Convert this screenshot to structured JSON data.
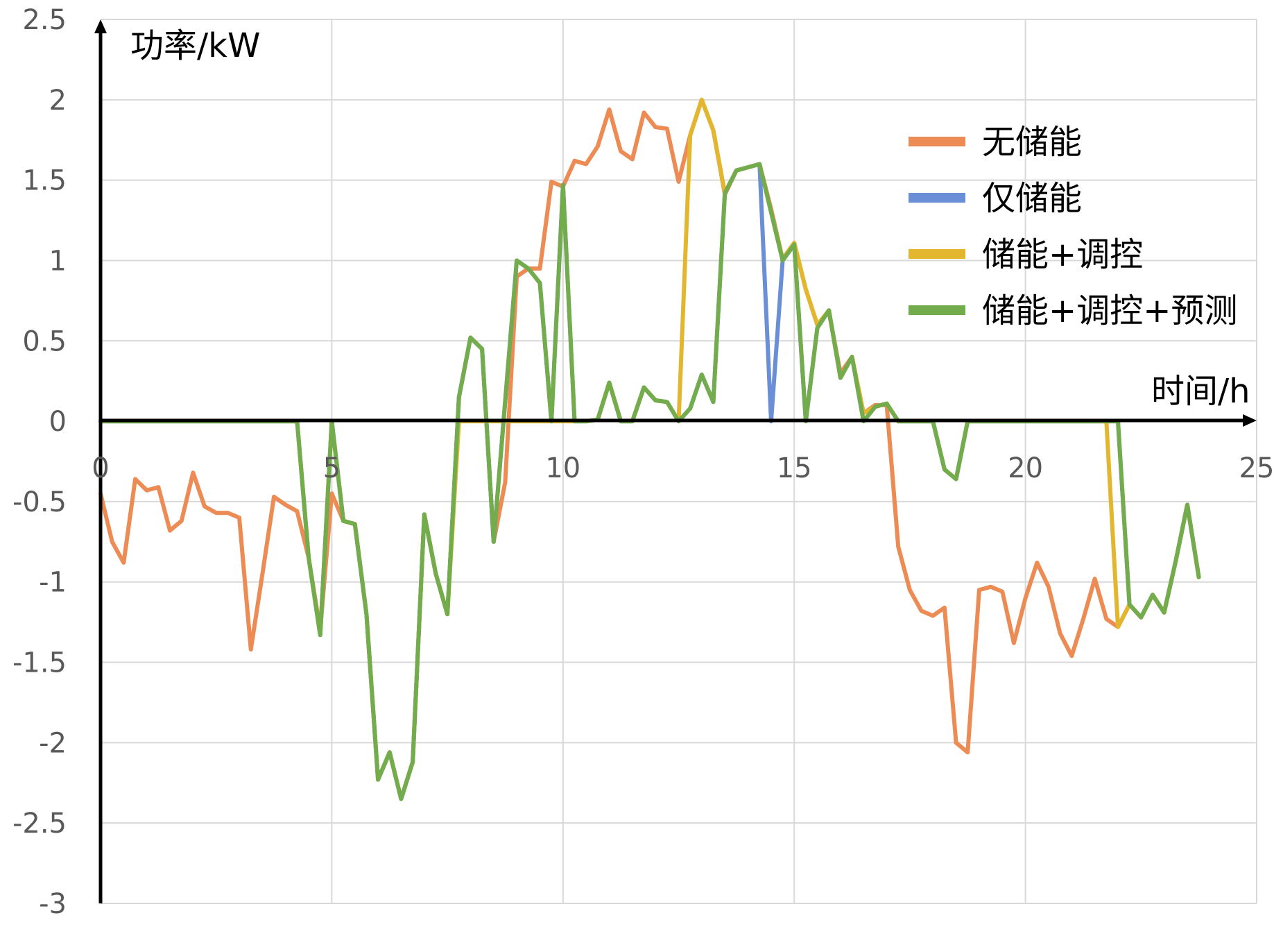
{
  "chart_data": {
    "type": "line",
    "xlabel": "时间/h",
    "ylabel": "功率/kW",
    "xlim": [
      0,
      25
    ],
    "ylim": [
      -3,
      2.5
    ],
    "xticks": [
      0,
      5,
      10,
      15,
      20,
      25
    ],
    "yticks": [
      2.5,
      2,
      1.5,
      1,
      0.5,
      0,
      -0.5,
      -1,
      -1.5,
      -2,
      -2.5,
      -3
    ],
    "ytick_labels": [
      "2.5",
      "2",
      "1.5",
      "1",
      "0.5",
      "0",
      "-0.5",
      "-1",
      "-1.5",
      "-2",
      "-2.5",
      "-3"
    ],
    "xtick_labels": [
      "0",
      "5",
      "10",
      "15",
      "20",
      "25"
    ],
    "grid": true,
    "legend_position": "top-right",
    "series": [
      {
        "name": "无储能",
        "color": "#ed8b55",
        "points": [
          [
            0,
            -0.45
          ],
          [
            0.25,
            -0.75
          ],
          [
            0.5,
            -0.88
          ],
          [
            0.75,
            -0.36
          ],
          [
            1,
            -0.43
          ],
          [
            1.25,
            -0.41
          ],
          [
            1.5,
            -0.68
          ],
          [
            1.75,
            -0.62
          ],
          [
            2,
            -0.32
          ],
          [
            2.25,
            -0.53
          ],
          [
            2.5,
            -0.57
          ],
          [
            2.75,
            -0.57
          ],
          [
            3,
            -0.6
          ],
          [
            3.25,
            -1.42
          ],
          [
            3.5,
            -0.95
          ],
          [
            3.75,
            -0.47
          ],
          [
            4,
            -0.52
          ],
          [
            4.25,
            -0.56
          ],
          [
            4.5,
            -0.85
          ],
          [
            4.75,
            -1.3
          ],
          [
            5,
            -0.45
          ],
          [
            5.25,
            -0.62
          ],
          [
            5.5,
            -0.64
          ],
          [
            5.75,
            -1.2
          ],
          [
            6,
            -2.23
          ],
          [
            6.25,
            -2.06
          ],
          [
            6.5,
            -2.35
          ],
          [
            6.75,
            -2.12
          ],
          [
            7,
            -0.58
          ],
          [
            7.25,
            -0.95
          ],
          [
            7.5,
            -1.2
          ],
          [
            7.75,
            0.15
          ],
          [
            8,
            0.52
          ],
          [
            8.25,
            0.45
          ],
          [
            8.5,
            -0.75
          ],
          [
            8.75,
            -0.38
          ],
          [
            9,
            0.9
          ],
          [
            9.25,
            0.95
          ],
          [
            9.5,
            0.95
          ],
          [
            9.75,
            1.49
          ],
          [
            10,
            1.46
          ],
          [
            10.25,
            1.62
          ],
          [
            10.5,
            1.6
          ],
          [
            10.75,
            1.71
          ],
          [
            11,
            1.94
          ],
          [
            11.25,
            1.68
          ],
          [
            11.5,
            1.63
          ],
          [
            11.75,
            1.92
          ],
          [
            12,
            1.83
          ],
          [
            12.25,
            1.82
          ],
          [
            12.5,
            1.49
          ],
          [
            12.75,
            1.78
          ],
          [
            13,
            2
          ],
          [
            13.25,
            1.81
          ],
          [
            13.5,
            1.41
          ],
          [
            13.75,
            1.56
          ],
          [
            14,
            1.58
          ],
          [
            14.25,
            1.6
          ],
          [
            14.5,
            1.32
          ],
          [
            14.75,
            1.01
          ],
          [
            15,
            1.11
          ],
          [
            15.25,
            0.82
          ],
          [
            15.5,
            0.6
          ],
          [
            15.75,
            0.68
          ],
          [
            16,
            0.3
          ],
          [
            16.25,
            0.4
          ],
          [
            16.5,
            0.05
          ],
          [
            16.75,
            0.1
          ],
          [
            17,
            0.1
          ],
          [
            17.25,
            -0.78
          ],
          [
            17.5,
            -1.05
          ],
          [
            17.75,
            -1.18
          ],
          [
            18,
            -1.21
          ],
          [
            18.25,
            -1.16
          ],
          [
            18.5,
            -2
          ],
          [
            18.75,
            -2.06
          ],
          [
            19,
            -1.05
          ],
          [
            19.25,
            -1.03
          ],
          [
            19.5,
            -1.06
          ],
          [
            19.75,
            -1.38
          ],
          [
            20,
            -1.1
          ],
          [
            20.25,
            -0.88
          ],
          [
            20.5,
            -1.03
          ],
          [
            20.75,
            -1.32
          ],
          [
            21,
            -1.46
          ],
          [
            21.25,
            -1.23
          ],
          [
            21.5,
            -0.98
          ],
          [
            21.75,
            -1.23
          ],
          [
            22,
            -1.28
          ],
          [
            22.25,
            -1.14
          ],
          [
            22.5,
            -1.22
          ],
          [
            22.75,
            -1.08
          ],
          [
            23,
            -1.19
          ],
          [
            23.25,
            -0.87
          ],
          [
            23.5,
            -0.52
          ],
          [
            23.75,
            -0.97
          ]
        ]
      },
      {
        "name": "仅储能",
        "color": "#6a8fd6",
        "points": [
          [
            0,
            0
          ],
          [
            4.25,
            0
          ],
          [
            4.5,
            -0.85
          ],
          [
            4.75,
            -1.33
          ],
          [
            5,
            0
          ],
          [
            5.25,
            -0.62
          ],
          [
            5.5,
            -0.64
          ],
          [
            5.75,
            -1.2
          ],
          [
            6,
            -2.23
          ],
          [
            6.25,
            -2.06
          ],
          [
            6.5,
            -2.35
          ],
          [
            6.75,
            -2.12
          ],
          [
            7,
            -0.58
          ],
          [
            7.25,
            -0.95
          ],
          [
            7.5,
            -1.2
          ],
          [
            7.75,
            0.15
          ],
          [
            8,
            0.52
          ],
          [
            8.25,
            0.45
          ],
          [
            8.5,
            -0.75
          ],
          [
            9,
            1
          ],
          [
            9.25,
            0.95
          ],
          [
            9.5,
            0.86
          ],
          [
            9.75,
            0
          ],
          [
            10,
            1.47
          ],
          [
            10.25,
            0
          ],
          [
            10.5,
            0
          ],
          [
            10.75,
            0.01
          ],
          [
            11,
            0.24
          ],
          [
            11.25,
            0
          ],
          [
            11.5,
            0
          ],
          [
            11.75,
            0.21
          ],
          [
            12,
            0.13
          ],
          [
            12.25,
            0.12
          ],
          [
            12.5,
            0
          ],
          [
            12.75,
            0.08
          ],
          [
            13,
            0.29
          ],
          [
            13.25,
            0.12
          ],
          [
            13.5,
            1.42
          ],
          [
            13.75,
            1.56
          ],
          [
            14,
            1.58
          ],
          [
            14.25,
            1.6
          ],
          [
            14.5,
            0
          ],
          [
            14.75,
            1
          ],
          [
            15,
            1.1
          ],
          [
            15.25,
            0
          ],
          [
            15.5,
            0.58
          ],
          [
            15.75,
            0.69
          ],
          [
            16,
            0.27
          ],
          [
            16.25,
            0.4
          ],
          [
            16.5,
            0
          ],
          [
            16.75,
            0.09
          ],
          [
            17,
            0.11
          ],
          [
            17.25,
            0
          ],
          [
            18,
            0
          ],
          [
            18.25,
            -0.3
          ],
          [
            18.5,
            -0.36
          ],
          [
            18.75,
            0
          ],
          [
            22,
            0
          ],
          [
            22.25,
            -1.14
          ],
          [
            22.5,
            -1.22
          ],
          [
            22.75,
            -1.08
          ],
          [
            23,
            -1.19
          ],
          [
            23.25,
            -0.87
          ],
          [
            23.5,
            -0.52
          ],
          [
            23.75,
            -0.97
          ]
        ]
      },
      {
        "name": "储能+调控",
        "color": "#e2b62e",
        "points": [
          [
            0,
            0
          ],
          [
            4.25,
            0
          ],
          [
            4.5,
            -0.85
          ],
          [
            4.75,
            -1.33
          ],
          [
            5,
            0
          ],
          [
            5.25,
            -0.62
          ],
          [
            5.5,
            -0.64
          ],
          [
            5.75,
            -1.2
          ],
          [
            6,
            -2.23
          ],
          [
            6.25,
            -2.06
          ],
          [
            6.5,
            -2.35
          ],
          [
            6.75,
            -2.12
          ],
          [
            7,
            -0.58
          ],
          [
            7.25,
            -0.95
          ],
          [
            7.5,
            -1.2
          ],
          [
            7.75,
            0
          ],
          [
            9.75,
            0
          ],
          [
            10,
            0
          ],
          [
            10.25,
            0
          ],
          [
            10.5,
            0
          ],
          [
            10.75,
            0.01
          ],
          [
            11,
            0.24
          ],
          [
            11.25,
            0
          ],
          [
            11.5,
            0
          ],
          [
            11.75,
            0.21
          ],
          [
            12,
            0.13
          ],
          [
            12.25,
            0.12
          ],
          [
            12.5,
            0
          ],
          [
            12.75,
            1.78
          ],
          [
            13,
            2
          ],
          [
            13.25,
            1.81
          ],
          [
            13.5,
            1.42
          ],
          [
            13.75,
            1.56
          ],
          [
            14,
            1.58
          ],
          [
            14.25,
            1.6
          ],
          [
            14.5,
            1.3
          ],
          [
            14.75,
            1.01
          ],
          [
            15,
            1.11
          ],
          [
            15.25,
            0.82
          ],
          [
            15.5,
            0.6
          ],
          [
            15.75,
            0.69
          ],
          [
            16,
            0.27
          ],
          [
            16.25,
            0.4
          ],
          [
            16.5,
            0.05
          ],
          [
            16.75,
            0.09
          ],
          [
            17,
            0.11
          ],
          [
            17.25,
            0
          ],
          [
            18,
            0
          ],
          [
            18.25,
            -0.3
          ],
          [
            18.5,
            -0.36
          ],
          [
            18.75,
            0
          ],
          [
            21.75,
            0
          ],
          [
            22,
            -1.28
          ],
          [
            22.25,
            -1.14
          ],
          [
            22.5,
            -1.22
          ],
          [
            22.75,
            -1.08
          ],
          [
            23,
            -1.19
          ],
          [
            23.25,
            -0.87
          ],
          [
            23.5,
            -0.52
          ],
          [
            23.75,
            -0.97
          ]
        ]
      },
      {
        "name": "储能+调控+预测",
        "color": "#72ac4d",
        "points": [
          [
            0,
            0
          ],
          [
            4.25,
            0
          ],
          [
            4.5,
            -0.85
          ],
          [
            4.75,
            -1.33
          ],
          [
            5,
            0
          ],
          [
            5.25,
            -0.62
          ],
          [
            5.5,
            -0.64
          ],
          [
            5.75,
            -1.2
          ],
          [
            6,
            -2.23
          ],
          [
            6.25,
            -2.06
          ],
          [
            6.5,
            -2.35
          ],
          [
            6.75,
            -2.12
          ],
          [
            7,
            -0.58
          ],
          [
            7.25,
            -0.95
          ],
          [
            7.5,
            -1.2
          ],
          [
            7.75,
            0.15
          ],
          [
            8,
            0.52
          ],
          [
            8.25,
            0.45
          ],
          [
            8.5,
            -0.75
          ],
          [
            9,
            1
          ],
          [
            9.25,
            0.95
          ],
          [
            9.5,
            0.86
          ],
          [
            9.75,
            0
          ],
          [
            10,
            1.47
          ],
          [
            10.25,
            0
          ],
          [
            10.5,
            0
          ],
          [
            10.75,
            0.01
          ],
          [
            11,
            0.24
          ],
          [
            11.25,
            0
          ],
          [
            11.5,
            0
          ],
          [
            11.75,
            0.21
          ],
          [
            12,
            0.13
          ],
          [
            12.25,
            0.12
          ],
          [
            12.5,
            0
          ],
          [
            12.75,
            0.08
          ],
          [
            13,
            0.29
          ],
          [
            13.25,
            0.12
          ],
          [
            13.5,
            1.42
          ],
          [
            13.75,
            1.56
          ],
          [
            14,
            1.58
          ],
          [
            14.25,
            1.6
          ],
          [
            14.5,
            1.3
          ],
          [
            14.75,
            1
          ],
          [
            15,
            1.1
          ],
          [
            15.25,
            0
          ],
          [
            15.5,
            0.58
          ],
          [
            15.75,
            0.69
          ],
          [
            16,
            0.27
          ],
          [
            16.25,
            0.4
          ],
          [
            16.5,
            0
          ],
          [
            16.75,
            0.09
          ],
          [
            17,
            0.11
          ],
          [
            17.25,
            0
          ],
          [
            18,
            0
          ],
          [
            18.25,
            -0.3
          ],
          [
            18.5,
            -0.36
          ],
          [
            18.75,
            0
          ],
          [
            22,
            0
          ],
          [
            22.25,
            -1.14
          ],
          [
            22.5,
            -1.22
          ],
          [
            22.75,
            -1.08
          ],
          [
            23,
            -1.19
          ],
          [
            23.25,
            -0.87
          ],
          [
            23.5,
            -0.52
          ],
          [
            23.75,
            -0.97
          ]
        ]
      }
    ]
  }
}
